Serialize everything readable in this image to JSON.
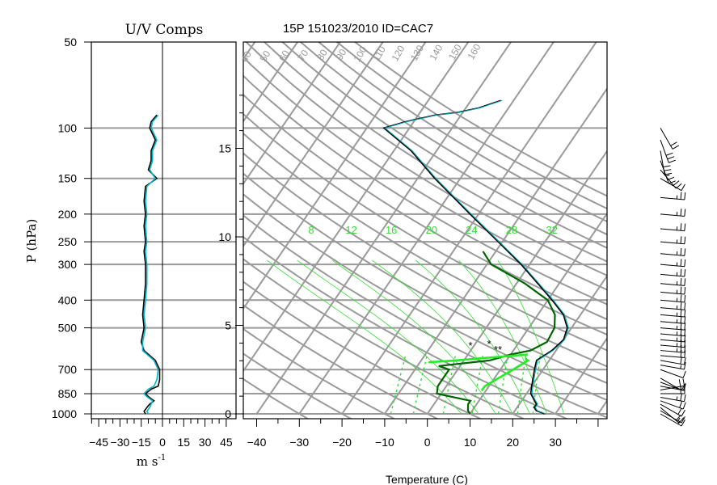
{
  "header": {
    "left_title": "U/V Comps",
    "right_title": "15P 151023/2010 ID=CAC7"
  },
  "colors": {
    "grid": "#9a9a9a",
    "green_label": "#33dd33",
    "dewpoint": "#006400",
    "profile": "#000000",
    "profile_cyan": "#00a0b0",
    "parcel": "#22ee22",
    "wind_u": "#00b5c5",
    "wind_v": "#000000"
  },
  "chart_data": [
    {
      "type": "line",
      "title": "U/V Comps",
      "xlabel": "m s",
      "xlabel_exp": "-1",
      "ylabel": "P (hPa)",
      "x_ticks": [
        "−45",
        "−30",
        "−15",
        "0",
        "15",
        "30",
        "45"
      ],
      "y_ticks": [
        "50",
        "100",
        "150",
        "200",
        "250",
        "300",
        "400",
        "500",
        "700",
        "850",
        "1000"
      ],
      "y_tick_values": [
        50,
        100,
        150,
        200,
        250,
        300,
        400,
        500,
        700,
        850,
        1000
      ],
      "xlim": [
        -50,
        50
      ],
      "ylim": [
        1000,
        50
      ],
      "series": [
        {
          "pressure": [
            1000,
            980,
            950,
            925,
            900,
            870,
            850,
            820,
            800,
            760,
            700,
            650,
            600,
            560,
            500,
            450,
            400,
            350,
            300,
            270,
            250,
            220,
            200,
            180,
            160,
            150,
            140,
            130,
            120,
            110,
            100,
            95,
            90
          ],
          "values": [
            -12,
            -13,
            -11,
            -9,
            -6,
            -10,
            -12,
            -8,
            -3,
            -2,
            -2,
            -5,
            -13,
            -15,
            -13,
            -14,
            -13,
            -12,
            -12,
            -13,
            -12,
            -13,
            -12,
            -13,
            -12,
            -4,
            -10,
            -8,
            -8,
            -5,
            -9,
            -8,
            -4
          ]
        },
        {
          "pressure": [
            1000,
            980,
            950,
            925,
            900,
            870,
            850,
            820,
            800,
            760,
            700,
            650,
            600,
            560,
            500,
            450,
            400,
            350,
            300,
            270,
            250,
            220,
            200,
            180,
            160,
            150,
            140,
            130,
            120,
            110,
            100,
            95,
            90
          ],
          "values": [
            -10,
            -11,
            -9,
            -8,
            -7,
            -11,
            -13,
            -10,
            -6,
            -4,
            -3,
            -6,
            -14,
            -14,
            -12,
            -13,
            -12,
            -11,
            -11,
            -12,
            -11,
            -12,
            -11,
            -12,
            -11,
            -5,
            -9,
            -7,
            -7,
            -4,
            -8,
            -7,
            -3
          ]
        }
      ]
    },
    {
      "type": "line",
      "title": "15P 151023/2010 ID=CAC7",
      "xlabel": "Temperature (C)",
      "ylabel": "",
      "x_ticks": [
        "−40",
        "−30",
        "−20",
        "−10",
        "0",
        "10",
        "20",
        "30"
      ],
      "x_tick_values": [
        -40,
        -30,
        -20,
        -10,
        0,
        10,
        20,
        30
      ],
      "height_ticks": [
        "0",
        "5",
        "10",
        "15"
      ],
      "height_tick_values": [
        0,
        5,
        10,
        15
      ],
      "xlim": [
        -43,
        42
      ],
      "ylim": [
        1000,
        50
      ],
      "theta_labels": [
        "40",
        "50",
        "60",
        "70",
        "80",
        "90",
        "100",
        "110",
        "120",
        "130",
        "140",
        "150",
        "160"
      ],
      "mixing_ratio_labels": [
        "8",
        "12",
        "16",
        "20",
        "24",
        "28",
        "32"
      ],
      "series": [
        {
          "name": "",
          "pressure": [
            1000,
            975,
            950,
            925,
            900,
            850,
            800,
            700,
            650,
            600,
            550,
            500,
            450,
            400,
            350,
            300,
            250,
            200,
            150,
            120,
            100,
            95,
            90,
            88,
            85,
            80
          ],
          "values": [
            27.5,
            25,
            24,
            24,
            23,
            21,
            20,
            18,
            17,
            19,
            20,
            19,
            16,
            11,
            5,
            -2,
            -11,
            -22,
            -36,
            -46,
            -56,
            -52,
            -46,
            -41,
            -37,
            -33
          ]
        },
        {
          "name": "",
          "pressure": [
            1000,
            975,
            950,
            925,
            900,
            850,
            800,
            750,
            700,
            680,
            650,
            620,
            600,
            560,
            500,
            450,
            400,
            350,
            300,
            270
          ],
          "values": [
            10,
            9,
            8.5,
            8,
            8,
            -1,
            -2,
            -2,
            -2,
            -5,
            6,
            10,
            14,
            16.5,
            16,
            14,
            10,
            2,
            -9,
            -13
          ]
        },
        {
          "name": "",
          "pressure": [
            830,
            800,
            700,
            650,
            640
          ],
          "values": [
            9,
            9,
            13,
            15,
            14
          ]
        },
        {
          "name": "",
          "pressure": [
            660,
            650,
            640,
            620
          ],
          "values": [
            -8,
            -2,
            3,
            14
          ]
        }
      ],
      "markers": [
        "*",
        "*",
        "**"
      ]
    }
  ],
  "wind_barbs": {
    "pressure": [
      1000,
      975,
      950,
      925,
      900,
      875,
      850,
      825,
      800,
      775,
      750,
      700,
      675,
      650,
      625,
      600,
      575,
      550,
      525,
      500,
      475,
      450,
      425,
      400,
      375,
      350,
      325,
      300,
      275,
      250,
      225,
      200,
      175,
      150,
      140,
      130,
      120,
      110,
      100
    ],
    "speed": [
      15,
      15,
      20,
      20,
      20,
      25,
      20,
      20,
      15,
      10,
      10,
      10,
      15,
      20,
      20,
      25,
      25,
      25,
      25,
      25,
      25,
      25,
      25,
      25,
      25,
      25,
      25,
      25,
      25,
      25,
      25,
      25,
      25,
      10,
      20,
      25,
      30,
      30,
      20
    ],
    "direction": [
      120,
      120,
      130,
      120,
      110,
      100,
      90,
      80,
      100,
      110,
      120,
      110,
      100,
      100,
      95,
      95,
      95,
      95,
      95,
      95,
      95,
      95,
      95,
      95,
      95,
      95,
      95,
      95,
      95,
      95,
      95,
      95,
      95,
      120,
      140,
      160,
      170,
      160,
      150
    ]
  }
}
